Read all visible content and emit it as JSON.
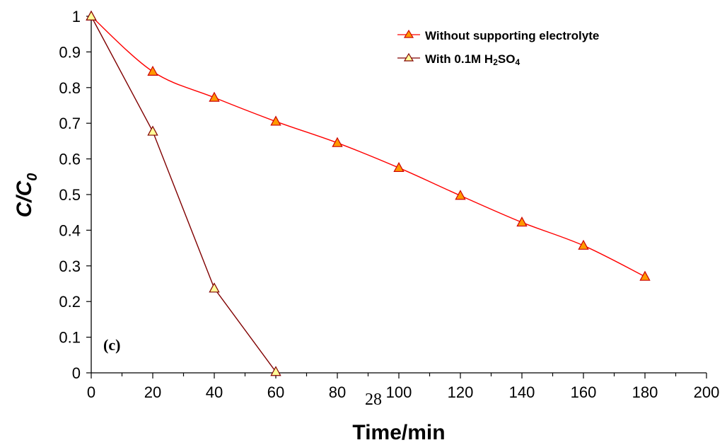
{
  "chart_data": {
    "type": "line",
    "xlabel": "Time/min",
    "ylabel_main": "C/C",
    "ylabel_sub": "0",
    "xlim": [
      0,
      200
    ],
    "ylim": [
      0,
      1
    ],
    "x_ticks": [
      0,
      20,
      40,
      60,
      80,
      100,
      120,
      140,
      160,
      180,
      200
    ],
    "y_ticks": [
      0,
      0.1,
      0.2,
      0.3,
      0.4,
      0.5,
      0.6,
      0.7,
      0.8,
      0.9,
      1
    ],
    "x_tick_labels": [
      "0",
      "20",
      "40",
      "60",
      "80",
      "100",
      "120",
      "140",
      "160",
      "180",
      "200"
    ],
    "y_tick_labels": [
      "0",
      "0.1",
      "0.2",
      "0.3",
      "0.4",
      "0.5",
      "0.6",
      "0.7",
      "0.8",
      "0.9",
      "1"
    ],
    "grid": false,
    "legend_position": "top-right",
    "panel_label": "(c)",
    "page_number": "28",
    "series": [
      {
        "name": "Without supporting electrolyte",
        "line_color": "#ff0000",
        "marker_fill": "#ff9900",
        "marker_stroke": "#cc0000",
        "x": [
          0,
          20,
          40,
          60,
          80,
          100,
          120,
          140,
          160,
          180
        ],
        "y": [
          1.0,
          0.845,
          0.772,
          0.705,
          0.645,
          0.575,
          0.497,
          0.422,
          0.357,
          0.27
        ]
      },
      {
        "name_prefix": "With 0.1M H",
        "name_sub1": "2",
        "name_mid": "SO",
        "name_sub2": "4",
        "line_color": "#800000",
        "marker_fill": "#ffff99",
        "marker_stroke": "#800000",
        "x": [
          0,
          20,
          40,
          60
        ],
        "y": [
          1.0,
          0.677,
          0.237,
          0.003
        ]
      }
    ]
  }
}
